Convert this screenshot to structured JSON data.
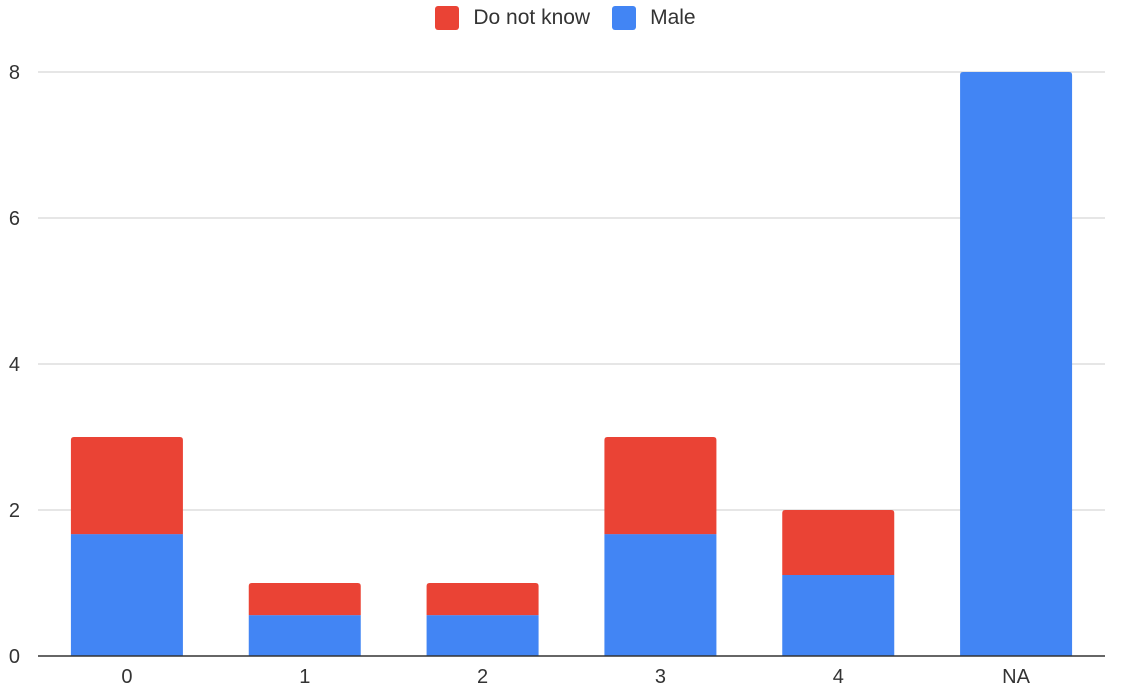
{
  "chart_data": {
    "type": "bar",
    "stacked": true,
    "categories": [
      "0",
      "1",
      "2",
      "3",
      "4",
      "NA"
    ],
    "series": [
      {
        "name": "Male",
        "color": "#4285f4",
        "values": [
          1.67,
          0.56,
          0.56,
          1.67,
          1.11,
          8
        ]
      },
      {
        "name": "Do not know",
        "color": "#ea4335",
        "values": [
          1.33,
          0.44,
          0.44,
          1.33,
          0.89,
          0
        ]
      }
    ],
    "legend_order": [
      "Do not know",
      "Male"
    ],
    "ylim": [
      0,
      8
    ],
    "yticks": [
      "0",
      "2",
      "4",
      "6",
      "8"
    ],
    "title": "",
    "xlabel": "",
    "ylabel": "",
    "legend_position": "top",
    "grid": true
  }
}
